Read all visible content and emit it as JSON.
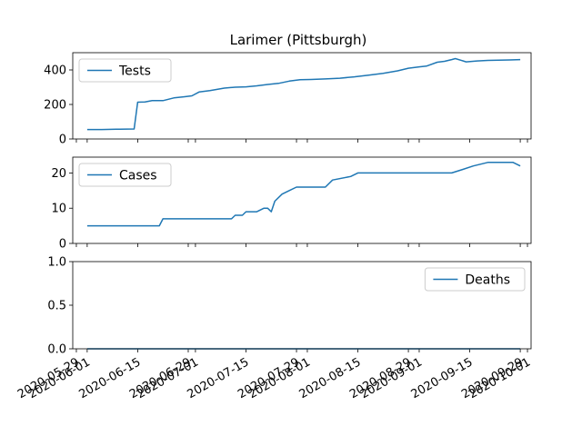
{
  "chart_data": {
    "type": "line",
    "title": "Larimer (Pittsburgh)",
    "line_color": "#1f77b4",
    "x_ticks": [
      "2020-05-29",
      "2020-06-01",
      "2020-06-15",
      "2020-06-29",
      "2020-07-01",
      "2020-07-15",
      "2020-07-29",
      "2020-08-01",
      "2020-08-15",
      "2020-08-29",
      "2020-09-01",
      "2020-09-15",
      "2020-09-29",
      "2020-10-01"
    ],
    "x_range": [
      "2020-05-28",
      "2020-10-02"
    ],
    "panels": [
      {
        "series_name": "Tests",
        "legend_position": "top-left",
        "ylim": [
          0,
          500
        ],
        "y_ticks": [
          "0",
          "200",
          "400"
        ],
        "y_tick_values": [
          0,
          200,
          400
        ],
        "x": [
          "2020-06-01",
          "2020-06-05",
          "2020-06-10",
          "2020-06-14",
          "2020-06-15",
          "2020-06-17",
          "2020-06-19",
          "2020-06-22",
          "2020-06-25",
          "2020-06-28",
          "2020-06-30",
          "2020-07-02",
          "2020-07-05",
          "2020-07-09",
          "2020-07-12",
          "2020-07-15",
          "2020-07-18",
          "2020-07-21",
          "2020-07-24",
          "2020-07-27",
          "2020-07-30",
          "2020-08-02",
          "2020-08-06",
          "2020-08-10",
          "2020-08-14",
          "2020-08-18",
          "2020-08-22",
          "2020-08-26",
          "2020-08-29",
          "2020-09-01",
          "2020-09-03",
          "2020-09-06",
          "2020-09-08",
          "2020-09-10",
          "2020-09-11",
          "2020-09-14",
          "2020-09-17",
          "2020-09-20",
          "2020-09-23",
          "2020-09-26",
          "2020-09-29"
        ],
        "values": [
          55,
          55,
          57,
          58,
          213,
          215,
          222,
          222,
          238,
          245,
          250,
          272,
          280,
          295,
          300,
          302,
          308,
          316,
          322,
          335,
          343,
          345,
          348,
          352,
          360,
          370,
          380,
          395,
          410,
          418,
          422,
          445,
          450,
          460,
          466,
          447,
          452,
          455,
          457,
          458,
          460
        ]
      },
      {
        "series_name": "Cases",
        "legend_position": "top-left",
        "ylim": [
          0,
          24.5
        ],
        "y_ticks": [
          "0",
          "10",
          "20"
        ],
        "y_tick_values": [
          0,
          10,
          20
        ],
        "x": [
          "2020-06-01",
          "2020-06-06",
          "2020-06-11",
          "2020-06-16",
          "2020-06-21",
          "2020-06-22",
          "2020-06-27",
          "2020-07-02",
          "2020-07-07",
          "2020-07-11",
          "2020-07-12",
          "2020-07-14",
          "2020-07-15",
          "2020-07-18",
          "2020-07-20",
          "2020-07-21",
          "2020-07-22",
          "2020-07-23",
          "2020-07-25",
          "2020-07-27",
          "2020-07-29",
          "2020-08-01",
          "2020-08-06",
          "2020-08-08",
          "2020-08-13",
          "2020-08-15",
          "2020-08-20",
          "2020-08-25",
          "2020-09-01",
          "2020-09-10",
          "2020-09-13",
          "2020-09-16",
          "2020-09-20",
          "2020-09-23",
          "2020-09-27",
          "2020-09-29"
        ],
        "values": [
          5,
          5,
          5,
          5,
          5,
          7,
          7,
          7,
          7,
          7,
          8,
          8,
          9,
          9,
          10,
          10,
          9,
          12,
          14,
          15,
          16,
          16,
          16,
          18,
          19,
          20,
          20,
          20,
          20,
          20,
          21,
          22,
          23,
          23,
          23,
          22
        ]
      },
      {
        "series_name": "Deaths",
        "legend_position": "top-right",
        "ylim": [
          0,
          1.0
        ],
        "y_ticks": [
          "0.0",
          "0.5",
          "1.0"
        ],
        "y_tick_values": [
          0,
          0.5,
          1.0
        ],
        "x": [
          "2020-06-01",
          "2020-09-29"
        ],
        "values": [
          0,
          0
        ]
      }
    ]
  }
}
